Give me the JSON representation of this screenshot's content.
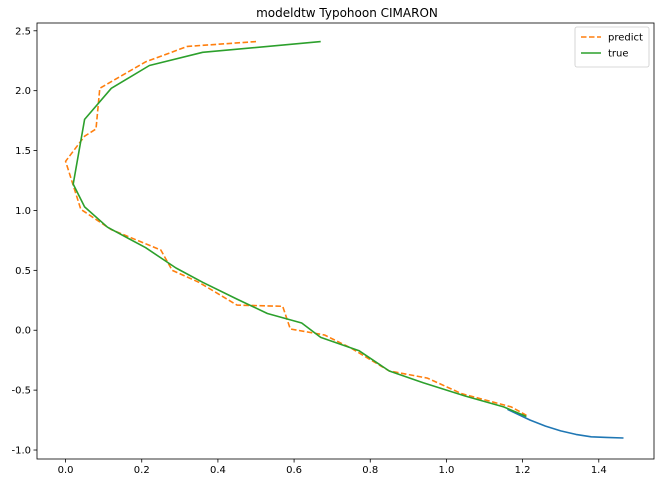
{
  "chart_data": {
    "type": "line",
    "title": "modeldtw  Typohoon CIMARON",
    "xlabel": "",
    "ylabel": "",
    "xlim": [
      -0.075,
      1.545
    ],
    "ylim": [
      -1.075,
      2.565
    ],
    "xticks": [
      0.0,
      0.2,
      0.4,
      0.6,
      0.8,
      1.0,
      1.2,
      1.4
    ],
    "xtick_labels": [
      "0.0",
      "0.2",
      "0.4",
      "0.6",
      "0.8",
      "1.0",
      "1.2",
      "1.4"
    ],
    "yticks": [
      -1.0,
      -0.5,
      0.0,
      0.5,
      1.0,
      1.5,
      2.0,
      2.5
    ],
    "ytick_labels": [
      "-1.0",
      "-0.5",
      "0.0",
      "0.5",
      "1.0",
      "1.5",
      "2.0",
      "2.5"
    ],
    "grid": false,
    "legend_position": "top-right",
    "series": [
      {
        "color": "#1f77b4",
        "style": "solid",
        "in_legend": false,
        "x": [
          1.16,
          1.22,
          1.26,
          1.3,
          1.34,
          1.38,
          1.42,
          1.465
        ],
        "y": [
          -0.66,
          -0.75,
          -0.8,
          -0.84,
          -0.87,
          -0.89,
          -0.895,
          -0.9
        ]
      },
      {
        "name": "predict",
        "color": "#ff7f0e",
        "style": "dashed",
        "in_legend": true,
        "x": [
          0.5,
          0.32,
          0.21,
          0.09,
          0.08,
          0.05,
          0.0,
          0.04,
          0.12,
          0.25,
          0.28,
          0.35,
          0.45,
          0.57,
          0.59,
          0.68,
          0.75,
          0.85,
          0.95,
          1.04,
          1.17,
          1.21
        ],
        "y": [
          2.41,
          2.37,
          2.24,
          2.02,
          1.68,
          1.62,
          1.41,
          1.01,
          0.84,
          0.67,
          0.5,
          0.4,
          0.21,
          0.2,
          0.01,
          -0.04,
          -0.15,
          -0.34,
          -0.4,
          -0.53,
          -0.64,
          -0.71
        ]
      },
      {
        "name": "true",
        "color": "#2ca02c",
        "style": "solid",
        "in_legend": true,
        "x": [
          0.67,
          0.36,
          0.22,
          0.12,
          0.05,
          0.02,
          0.05,
          0.11,
          0.21,
          0.29,
          0.36,
          0.45,
          0.53,
          0.62,
          0.67,
          0.77,
          0.85,
          0.94,
          1.05,
          1.15,
          1.21
        ],
        "y": [
          2.41,
          2.32,
          2.21,
          2.02,
          1.76,
          1.22,
          1.03,
          0.86,
          0.69,
          0.52,
          0.4,
          0.26,
          0.14,
          0.06,
          -0.06,
          -0.17,
          -0.34,
          -0.44,
          -0.55,
          -0.64,
          -0.72
        ]
      }
    ]
  }
}
